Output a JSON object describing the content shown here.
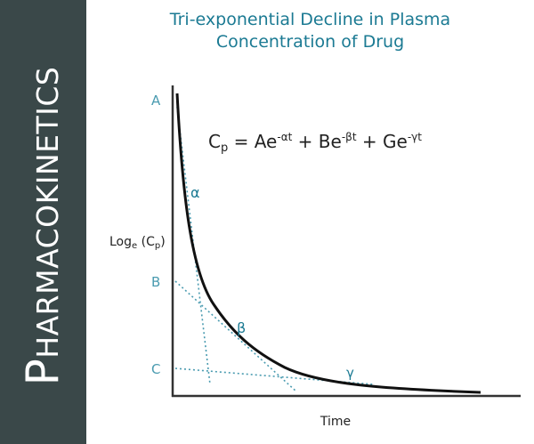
{
  "sidebar": {
    "first_letter": "P",
    "rest": "HARMACOKINETICS"
  },
  "title": {
    "line1": "Tri-exponential Decline in Plasma",
    "line2": "Concentration of Drug"
  },
  "equation": {
    "lhs_main": "C",
    "lhs_sub": "p",
    "eq": " = ",
    "t1": "Ae",
    "t1_exp": "-αt",
    "plus1": " + ",
    "t2": "Be",
    "t2_exp": "-βt",
    "plus2": " + ",
    "t3": "Ge",
    "t3_exp": "-γt"
  },
  "axes": {
    "ylabel_main": "Log",
    "ylabel_sub": "e",
    "ylabel_rest": " (C",
    "ylabel_sub2": "p",
    "ylabel_end": ")",
    "xlabel": "Time",
    "ticks": [
      "A",
      "B",
      "C"
    ]
  },
  "phases": {
    "alpha": "α",
    "beta": "β",
    "gamma": "γ"
  },
  "colors": {
    "sidebar": "#3a4849",
    "title": "#1b7a93",
    "accent": "#1b7a93",
    "dotted": "#4a9bb0",
    "axis": "#333333",
    "curve": "#111111"
  }
}
